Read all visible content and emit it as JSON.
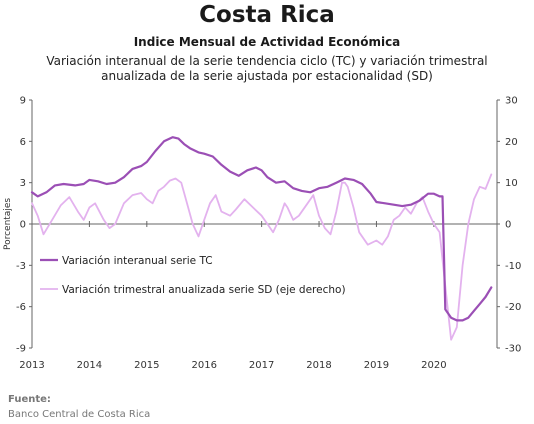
{
  "header": {
    "title": "Costa Rica",
    "subtitle": "Indice Mensual de  Actividad Económica",
    "description_line1": "Variación interanual de la serie tendencia ciclo (TC) y variación trimestral",
    "description_line2": "anualizada de la serie ajustada por estacionalidad (SD)"
  },
  "footer": {
    "source_label": "Fuente:",
    "source_text": "Banco Central de Costa Rica"
  },
  "chart_data": {
    "type": "line",
    "ylabel": "Porcentajes",
    "ylim": [
      -9,
      9
    ],
    "yticks": [
      9,
      6,
      3,
      0,
      -3,
      -6,
      -9
    ],
    "y2lim": [
      -30,
      30
    ],
    "y2ticks": [
      30,
      20,
      10,
      0,
      -10,
      -20,
      -30
    ],
    "xlim": [
      2013.0,
      2021.1
    ],
    "xticks": [
      "2013",
      "2014",
      "2015",
      "2016",
      "2017",
      "2018",
      "2019",
      "2020"
    ],
    "grid": false,
    "legend_position": "lower-left",
    "colors": {
      "tc": "#9b4fb5",
      "sd": "#e3b2ee",
      "axis": "#666666"
    },
    "series": [
      {
        "name": "Variación interanual serie TC",
        "axis": "left",
        "x": [
          2013.0,
          2013.1,
          2013.25,
          2013.4,
          2013.55,
          2013.75,
          2013.9,
          2014.0,
          2014.15,
          2014.3,
          2014.45,
          2014.6,
          2014.75,
          2014.9,
          2015.0,
          2015.15,
          2015.3,
          2015.45,
          2015.55,
          2015.65,
          2015.75,
          2015.9,
          2016.0,
          2016.15,
          2016.3,
          2016.45,
          2016.6,
          2016.75,
          2016.9,
          2017.0,
          2017.1,
          2017.25,
          2017.4,
          2017.55,
          2017.7,
          2017.85,
          2018.0,
          2018.15,
          2018.3,
          2018.45,
          2018.6,
          2018.75,
          2018.9,
          2019.0,
          2019.15,
          2019.3,
          2019.45,
          2019.6,
          2019.75,
          2019.9,
          2020.0,
          2020.1,
          2020.15,
          2020.2,
          2020.3,
          2020.4,
          2020.5,
          2020.6,
          2020.7,
          2020.8,
          2020.9,
          2021.0
        ],
        "y": [
          2.3,
          2.0,
          2.3,
          2.8,
          2.9,
          2.8,
          2.9,
          3.2,
          3.1,
          2.9,
          3.0,
          3.4,
          4.0,
          4.2,
          4.5,
          5.3,
          6.0,
          6.3,
          6.2,
          5.8,
          5.5,
          5.2,
          5.1,
          4.9,
          4.3,
          3.8,
          3.5,
          3.9,
          4.1,
          3.9,
          3.4,
          3.0,
          3.1,
          2.6,
          2.4,
          2.3,
          2.6,
          2.7,
          3.0,
          3.3,
          3.2,
          2.9,
          2.2,
          1.6,
          1.5,
          1.4,
          1.3,
          1.4,
          1.7,
          2.2,
          2.2,
          2.0,
          2.0,
          -6.2,
          -6.8,
          -7.0,
          -7.0,
          -6.8,
          -6.3,
          -5.8,
          -5.3,
          -4.6
        ]
      },
      {
        "name": "Variación trimestral anualizada serie SD (eje derecho)",
        "axis": "right",
        "x": [
          2013.0,
          2013.1,
          2013.2,
          2013.35,
          2013.5,
          2013.65,
          2013.8,
          2013.9,
          2014.0,
          2014.1,
          2014.25,
          2014.35,
          2014.45,
          2014.6,
          2014.75,
          2014.9,
          2015.0,
          2015.1,
          2015.2,
          2015.3,
          2015.4,
          2015.5,
          2015.6,
          2015.7,
          2015.8,
          2015.9,
          2016.0,
          2016.1,
          2016.2,
          2016.3,
          2016.45,
          2016.55,
          2016.7,
          2016.85,
          2017.0,
          2017.1,
          2017.2,
          2017.3,
          2017.4,
          2017.45,
          2017.55,
          2017.65,
          2017.8,
          2017.9,
          2018.0,
          2018.1,
          2018.2,
          2018.3,
          2018.4,
          2018.45,
          2018.5,
          2018.6,
          2018.7,
          2018.85,
          2019.0,
          2019.1,
          2019.2,
          2019.3,
          2019.4,
          2019.5,
          2019.6,
          2019.7,
          2019.8,
          2019.9,
          2020.0,
          2020.1,
          2020.2,
          2020.3,
          2020.4,
          2020.5,
          2020.6,
          2020.7,
          2020.8,
          2020.9,
          2021.0
        ],
        "y": [
          5,
          2,
          -2.5,
          1,
          4.5,
          6.5,
          3,
          1,
          4,
          5,
          1,
          -1,
          0,
          5,
          7,
          7.5,
          6,
          5,
          8,
          9,
          10.5,
          11,
          10,
          5,
          0,
          -3,
          1,
          5,
          7,
          3,
          2,
          3.5,
          6,
          4,
          2,
          0,
          -2,
          1,
          5,
          4,
          1,
          2,
          5,
          7,
          2,
          -1,
          -2.5,
          3,
          10,
          10,
          9,
          4,
          -2,
          -5,
          -4,
          -5,
          -3,
          1,
          2,
          4,
          2.5,
          5,
          6.5,
          3,
          0,
          -2,
          -15,
          -28,
          -25,
          -10,
          0,
          6,
          9,
          8.5,
          12
        ]
      }
    ]
  }
}
